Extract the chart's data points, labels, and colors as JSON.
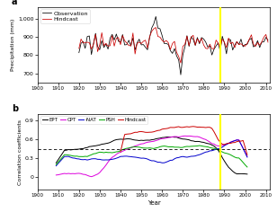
{
  "panel_a": {
    "title": "a",
    "ylabel": "Precipitation (mm)",
    "xlim": [
      1900,
      2012
    ],
    "ylim": [
      650,
      1060
    ],
    "yticks": [
      700,
      800,
      900,
      1000
    ],
    "ytick_labels": [
      "700",
      "800",
      "900",
      "1,000"
    ],
    "xticks": [
      1900,
      1910,
      1920,
      1930,
      1940,
      1950,
      1960,
      1970,
      1980,
      1990,
      2000,
      2010
    ],
    "yellow_line_x": 1988,
    "obs_color": "#000000",
    "hindcast_color": "#cc0000",
    "legend_labels": [
      "Observation",
      "Hindcast"
    ],
    "obs_start": 1920,
    "hindcast_start": 1920
  },
  "panel_b": {
    "title": "b",
    "ylabel": "Correlation coefficients",
    "xlabel": "Year",
    "xlim": [
      1900,
      2012
    ],
    "ylim": [
      -0.2,
      1.0
    ],
    "yticks": [
      0,
      0.3,
      0.6,
      0.9
    ],
    "ytick_labels": [
      "0",
      "0.3",
      "0.6",
      "0.9"
    ],
    "xticks": [
      1900,
      1910,
      1920,
      1930,
      1940,
      1950,
      1960,
      1970,
      1980,
      1990,
      2000,
      2010
    ],
    "dashed_line_y": 0.44,
    "yellow_line_x": 1988,
    "line_colors": {
      "EPT": "#000000",
      "CPT": "#dd00dd",
      "NAT": "#0000cc",
      "PSH": "#00aa00",
      "Hindcast": "#cc0000"
    },
    "legend_labels": [
      "EPT",
      "CPT",
      "-NAT",
      "PSH",
      "Hindcast"
    ]
  },
  "fig_background": "#ffffff"
}
